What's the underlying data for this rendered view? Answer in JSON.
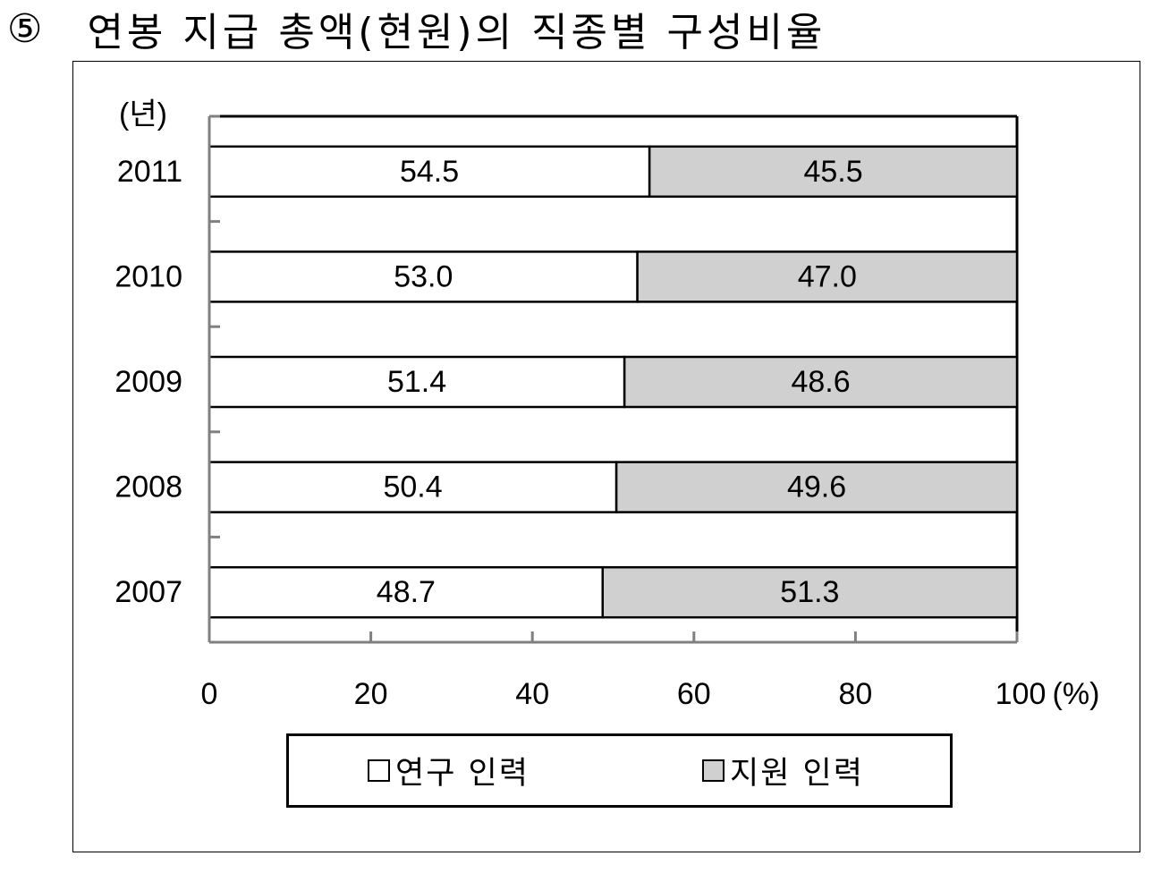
{
  "heading": {
    "number": "⑤",
    "title": "연봉 지급 총액(현원)의 직종별 구성비율"
  },
  "chart_data": {
    "type": "bar",
    "orientation": "horizontal",
    "stacked": true,
    "y_unit_label": "(년)",
    "x_unit_label": "(%)",
    "categories": [
      "2011",
      "2010",
      "2009",
      "2008",
      "2007"
    ],
    "series": [
      {
        "name": "연구 인력",
        "color": "#ffffff",
        "values": [
          54.5,
          53.0,
          51.4,
          50.4,
          48.7
        ],
        "labels": [
          "54.5",
          "53.0",
          "51.4",
          "50.4",
          "48.7"
        ]
      },
      {
        "name": "지원 인력",
        "color": "#d0d0d0",
        "values": [
          45.5,
          47.0,
          48.6,
          49.6,
          51.3
        ],
        "labels": [
          "45.5",
          "47.0",
          "48.6",
          "49.6",
          "51.3"
        ]
      }
    ],
    "xlim": [
      0,
      100
    ],
    "xticks": [
      0,
      20,
      40,
      60,
      80,
      100
    ],
    "xtick_labels": [
      "0",
      "20",
      "40",
      "60",
      "80",
      "100"
    ],
    "grid": false,
    "legend": "bottom"
  }
}
